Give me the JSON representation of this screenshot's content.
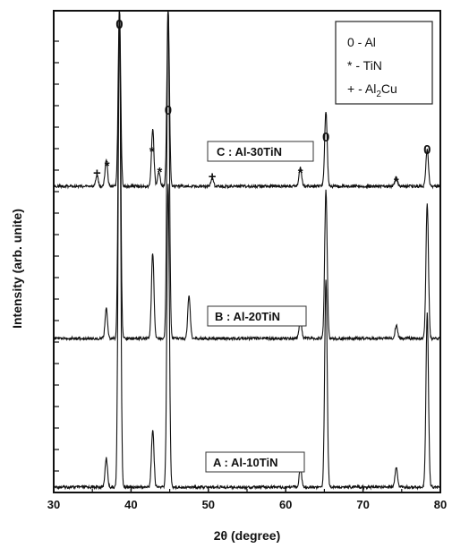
{
  "chart_data": {
    "type": "line",
    "title": "",
    "xlabel": "2θ (degree)",
    "ylabel": "Intensity (arb. unite)",
    "xlim": [
      30,
      80
    ],
    "x_ticks": [
      "30",
      "40",
      "50",
      "60",
      "70",
      "80"
    ],
    "grid": false,
    "legend_position": "top-right",
    "legend": [
      {
        "symbol": "0",
        "label": "Al"
      },
      {
        "symbol": "*",
        "label": "TiN"
      },
      {
        "symbol": "+",
        "label": "Al",
        "sub": "2",
        "label_tail": "Cu"
      }
    ],
    "series": [
      {
        "name": "A : Al-10TiN",
        "peaks": [
          {
            "x": 36.8,
            "h": 0.06
          },
          {
            "x": 38.5,
            "h": 1.0
          },
          {
            "x": 42.8,
            "h": 0.12
          },
          {
            "x": 44.8,
            "h": 0.63
          },
          {
            "x": 61.9,
            "h": 0.04
          },
          {
            "x": 65.2,
            "h": 0.43
          },
          {
            "x": 74.3,
            "h": 0.04
          },
          {
            "x": 78.3,
            "h": 0.36
          }
        ]
      },
      {
        "name": "B : Al-20TiN",
        "peaks": [
          {
            "x": 36.8,
            "h": 0.09
          },
          {
            "x": 38.5,
            "h": 1.0
          },
          {
            "x": 42.8,
            "h": 0.26
          },
          {
            "x": 44.8,
            "h": 1.0
          },
          {
            "x": 47.5,
            "h": 0.13
          },
          {
            "x": 61.9,
            "h": 0.06
          },
          {
            "x": 65.2,
            "h": 0.45
          },
          {
            "x": 74.3,
            "h": 0.04
          },
          {
            "x": 78.3,
            "h": 0.41
          }
        ]
      },
      {
        "name": "C : Al-30TiN",
        "peaks": [
          {
            "x": 35.6,
            "h": 0.06
          },
          {
            "x": 36.8,
            "h": 0.15
          },
          {
            "x": 38.5,
            "h": 1.0
          },
          {
            "x": 42.8,
            "h": 0.32
          },
          {
            "x": 43.6,
            "h": 0.08
          },
          {
            "x": 44.8,
            "h": 1.0
          },
          {
            "x": 50.5,
            "h": 0.04
          },
          {
            "x": 61.9,
            "h": 0.11
          },
          {
            "x": 65.2,
            "h": 0.42
          },
          {
            "x": 74.3,
            "h": 0.05
          },
          {
            "x": 78.3,
            "h": 0.21
          }
        ]
      }
    ],
    "annotations": [
      {
        "text": "0",
        "x": 38.5
      },
      {
        "text": "0",
        "x": 44.8
      },
      {
        "text": "0",
        "x": 65.2
      },
      {
        "text": "0",
        "x": 78.3
      },
      {
        "text": "*",
        "x": 36.9
      },
      {
        "text": "*",
        "x": 42.7
      },
      {
        "text": "*",
        "x": 43.7
      },
      {
        "text": "*",
        "x": 61.9
      },
      {
        "text": "*",
        "x": 74.3
      },
      {
        "text": "+",
        "x": 35.6
      },
      {
        "text": "+",
        "x": 50.5
      }
    ]
  }
}
